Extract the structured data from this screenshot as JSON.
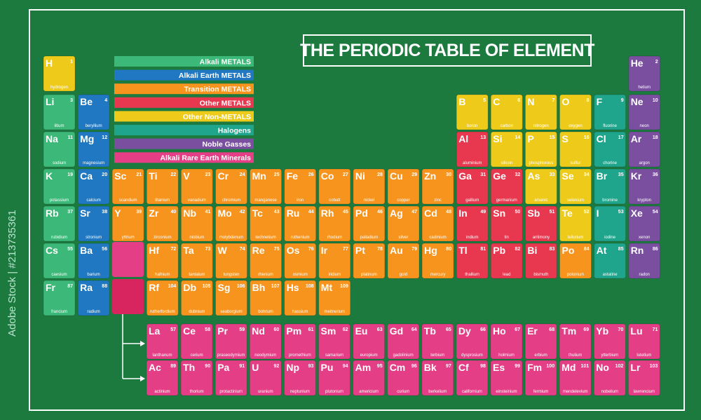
{
  "title": "THE PERIODIC TABLE OF ELEMENT",
  "watermark": "Adobe Stock | #213735361",
  "legend": {
    "items": [
      {
        "label": "Alkali METALS",
        "color": "#3cb878",
        "elements": [
          {
            "symbol": "Li",
            "number": 3,
            "name": "litium"
          },
          {
            "symbol": "Na",
            "number": 11,
            "name": "sodium"
          },
          {
            "symbol": "K",
            "number": 19,
            "name": "potassium"
          },
          {
            "symbol": "Rb",
            "number": 37,
            "name": "rubidium"
          },
          {
            "symbol": "Cs",
            "number": 55,
            "name": "caesium"
          },
          {
            "symbol": "Fr",
            "number": 87,
            "name": "francium"
          }
        ]
      },
      {
        "label": "Alkali Earth METALS",
        "color": "#1f78c1",
        "elements": [
          {
            "symbol": "Be",
            "number": 4,
            "name": "beryllium"
          },
          {
            "symbol": "Mg",
            "number": 12,
            "name": "magnesium"
          },
          {
            "symbol": "Ca",
            "number": 20,
            "name": "calcium"
          },
          {
            "symbol": "Sr",
            "number": 38,
            "name": "stronium"
          },
          {
            "symbol": "Ba",
            "number": 56,
            "name": "barium"
          },
          {
            "symbol": "Ra",
            "number": 88,
            "name": "radium"
          }
        ]
      },
      {
        "label": "Transition METALS",
        "color": "#f7941d",
        "elements": [
          {
            "symbol": "Sc",
            "number": 21,
            "name": "scandium"
          },
          {
            "symbol": "Ti",
            "number": 22,
            "name": "titanium"
          },
          {
            "symbol": "V",
            "number": 23,
            "name": "vanadium"
          },
          {
            "symbol": "Cr",
            "number": 24,
            "name": "chromium"
          },
          {
            "symbol": "Mn",
            "number": 25,
            "name": "manganese"
          },
          {
            "symbol": "Fe",
            "number": 26,
            "name": "iron"
          },
          {
            "symbol": "Co",
            "number": 27,
            "name": "cobalt"
          },
          {
            "symbol": "Ni",
            "number": 28,
            "name": "nickel"
          },
          {
            "symbol": "Cu",
            "number": 29,
            "name": "copper"
          },
          {
            "symbol": "Zn",
            "number": 30,
            "name": "zinc"
          },
          {
            "symbol": "Y",
            "number": 39,
            "name": "yttrium"
          },
          {
            "symbol": "Zr",
            "number": 40,
            "name": "zirconium"
          },
          {
            "symbol": "Nb",
            "number": 41,
            "name": "niobium"
          },
          {
            "symbol": "Mo",
            "number": 42,
            "name": "molybdenum"
          },
          {
            "symbol": "Tc",
            "number": 43,
            "name": "technetium"
          },
          {
            "symbol": "Ru",
            "number": 44,
            "name": "ruthenium"
          },
          {
            "symbol": "Rh",
            "number": 45,
            "name": "rhodium"
          },
          {
            "symbol": "Pd",
            "number": 46,
            "name": "palladium"
          },
          {
            "symbol": "Ag",
            "number": 47,
            "name": "silver"
          },
          {
            "symbol": "Cd",
            "number": 48,
            "name": "cadmium"
          },
          {
            "symbol": "Hf",
            "number": 72,
            "name": "hafnium"
          },
          {
            "symbol": "Ta",
            "number": 73,
            "name": "tantalum"
          },
          {
            "symbol": "W",
            "number": 74,
            "name": "tungsten"
          },
          {
            "symbol": "Re",
            "number": 75,
            "name": "rhenium"
          },
          {
            "symbol": "Os",
            "number": 76,
            "name": "osmium"
          },
          {
            "symbol": "Ir",
            "number": 77,
            "name": "iridium"
          },
          {
            "symbol": "Pt",
            "number": 78,
            "name": "platinum"
          },
          {
            "symbol": "Au",
            "number": 79,
            "name": "gold"
          },
          {
            "symbol": "Hg",
            "number": 80,
            "name": "mercury"
          },
          {
            "symbol": "Po",
            "number": 84,
            "name": "polonium"
          },
          {
            "symbol": "Rf",
            "number": 104,
            "name": "rutherfordium"
          },
          {
            "symbol": "Db",
            "number": 105,
            "name": "dubnium"
          },
          {
            "symbol": "Sg",
            "number": 106,
            "name": "seaborgium"
          },
          {
            "symbol": "Bh",
            "number": 107,
            "name": "bohrium"
          },
          {
            "symbol": "Hs",
            "number": 108,
            "name": "hassium"
          },
          {
            "symbol": "Mt",
            "number": 109,
            "name": "meitnerium"
          }
        ]
      },
      {
        "label": "Other METALS",
        "color": "#e8384f",
        "elements": [
          {
            "symbol": "Al",
            "number": 13,
            "name": "aluminium"
          },
          {
            "symbol": "Ga",
            "number": 31,
            "name": "gallium"
          },
          {
            "symbol": "Ge",
            "number": 32,
            "name": "germanium"
          },
          {
            "symbol": "In",
            "number": 49,
            "name": "indium"
          },
          {
            "symbol": "Sn",
            "number": 50,
            "name": "tin"
          },
          {
            "symbol": "Sb",
            "number": 51,
            "name": "antimony"
          },
          {
            "symbol": "Tl",
            "number": 81,
            "name": "thallium"
          },
          {
            "symbol": "Pb",
            "number": 82,
            "name": "lead"
          },
          {
            "symbol": "Bi",
            "number": 83,
            "name": "bismuth"
          }
        ]
      },
      {
        "label": "Other Non-METALS",
        "color": "#eecb1a",
        "elements": [
          {
            "symbol": "H",
            "number": 1,
            "name": "hydrogen"
          },
          {
            "symbol": "B",
            "number": 5,
            "name": "boron"
          },
          {
            "symbol": "C",
            "number": 6,
            "name": "carbon"
          },
          {
            "symbol": "N",
            "number": 7,
            "name": "nitrogen"
          },
          {
            "symbol": "O",
            "number": 8,
            "name": "oxygen"
          },
          {
            "symbol": "Si",
            "number": 14,
            "name": "silicon"
          },
          {
            "symbol": "P",
            "number": 15,
            "name": "phosphorous"
          },
          {
            "symbol": "S",
            "number": 16,
            "name": "sulfur"
          },
          {
            "symbol": "As",
            "number": 33,
            "name": "arsenic"
          },
          {
            "symbol": "Se",
            "number": 34,
            "name": "selenium"
          },
          {
            "symbol": "Te",
            "number": 52,
            "name": "tellurium"
          }
        ]
      },
      {
        "label": "Halogens",
        "color": "#1fa58c",
        "elements": [
          {
            "symbol": "F",
            "number": 9,
            "name": "fluorine"
          },
          {
            "symbol": "Cl",
            "number": 17,
            "name": "chorine"
          },
          {
            "symbol": "Br",
            "number": 35,
            "name": "bromine"
          },
          {
            "symbol": "I",
            "number": 53,
            "name": "iodine"
          },
          {
            "symbol": "At",
            "number": 85,
            "name": "astatine"
          }
        ]
      },
      {
        "label": "Noble Gasses",
        "color": "#7b4fa0",
        "elements": [
          {
            "symbol": "He",
            "number": 2,
            "name": "helium"
          },
          {
            "symbol": "Ne",
            "number": 10,
            "name": "neon"
          },
          {
            "symbol": "Ar",
            "number": 18,
            "name": "argon"
          },
          {
            "symbol": "Kr",
            "number": 36,
            "name": "krypton"
          },
          {
            "symbol": "Xe",
            "number": 54,
            "name": "xenon"
          },
          {
            "symbol": "Rn",
            "number": 86,
            "name": "radon"
          }
        ]
      },
      {
        "label": "Alkali Rare Earth Minerals",
        "color": "#e43f86",
        "elements": [
          {
            "symbol": "La",
            "number": 57,
            "name": "lanthanum"
          },
          {
            "symbol": "Ce",
            "number": 58,
            "name": "cerium"
          },
          {
            "symbol": "Pr",
            "number": 59,
            "name": "praseodymium"
          },
          {
            "symbol": "Nd",
            "number": 60,
            "name": "neodymium"
          },
          {
            "symbol": "Pm",
            "number": 61,
            "name": "promethium"
          },
          {
            "symbol": "Sm",
            "number": 62,
            "name": "samarium"
          },
          {
            "symbol": "Eu",
            "number": 63,
            "name": "europium"
          },
          {
            "symbol": "Gd",
            "number": 64,
            "name": "gadolinium"
          },
          {
            "symbol": "Tb",
            "number": 65,
            "name": "terbium"
          },
          {
            "symbol": "Dy",
            "number": 66,
            "name": "dysprosium"
          },
          {
            "symbol": "Ho",
            "number": 67,
            "name": "holmium"
          },
          {
            "symbol": "Er",
            "number": 68,
            "name": "erbium"
          },
          {
            "symbol": "Tm",
            "number": 69,
            "name": "thulium"
          },
          {
            "symbol": "Yb",
            "number": 70,
            "name": "ytterbium"
          },
          {
            "symbol": "Lu",
            "number": 71,
            "name": "lutetium"
          },
          {
            "symbol": "Ac",
            "number": 89,
            "name": "actinium"
          },
          {
            "symbol": "Th",
            "number": 90,
            "name": "thorium"
          },
          {
            "symbol": "Pa",
            "number": 91,
            "name": "protactinium"
          },
          {
            "symbol": "U",
            "number": 92,
            "name": "uranium"
          },
          {
            "symbol": "Np",
            "number": 93,
            "name": "neptunium"
          },
          {
            "symbol": "Pu",
            "number": 94,
            "name": "plutonium"
          },
          {
            "symbol": "Am",
            "number": 95,
            "name": "americium"
          },
          {
            "symbol": "Cm",
            "number": 96,
            "name": "curium"
          },
          {
            "symbol": "Bk",
            "number": 97,
            "name": "berkelium"
          },
          {
            "symbol": "Cf",
            "number": 98,
            "name": "californium"
          },
          {
            "symbol": "Es",
            "number": 99,
            "name": "einsteinium"
          },
          {
            "symbol": "Fm",
            "number": 100,
            "name": "fermium"
          },
          {
            "symbol": "Md",
            "number": 101,
            "name": "mendelevium"
          },
          {
            "symbol": "No",
            "number": 102,
            "name": "nobelium"
          },
          {
            "symbol": "Lr",
            "number": 103,
            "name": "lawrencium"
          }
        ]
      }
    ]
  }
}
